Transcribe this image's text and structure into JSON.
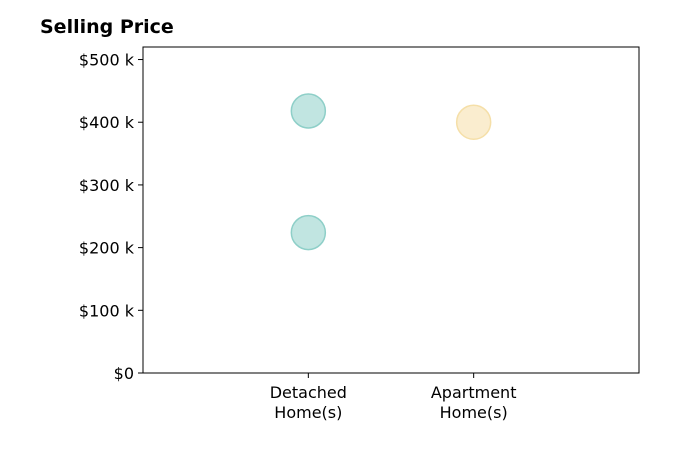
{
  "chart_data": {
    "type": "scatter",
    "title": "Selling Price",
    "xlabel": "",
    "ylabel": "",
    "ylim": [
      0,
      520000
    ],
    "xlim": [
      0,
      3
    ],
    "y_ticks": [
      {
        "value": 0,
        "label": "$0"
      },
      {
        "value": 100000,
        "label": "$100 k"
      },
      {
        "value": 200000,
        "label": "$200 k"
      },
      {
        "value": 300000,
        "label": "$300 k"
      },
      {
        "value": 400000,
        "label": "$400 k"
      },
      {
        "value": 500000,
        "label": "$500 k"
      }
    ],
    "categories": [
      {
        "label_lines": [
          "Detached",
          "Home(s)"
        ]
      },
      {
        "label_lines": [
          "Apartment",
          "Home(s)"
        ]
      }
    ],
    "points": [
      {
        "category_index": 0,
        "y": 418000,
        "color": "#8ecfc8"
      },
      {
        "category_index": 0,
        "y": 224000,
        "color": "#8ecfc8"
      },
      {
        "category_index": 1,
        "y": 400000,
        "color": "#f5dfa8"
      }
    ],
    "grid": false,
    "colors": {
      "detached": "#8ecfc8",
      "apartment": "#f5dfa8"
    }
  }
}
